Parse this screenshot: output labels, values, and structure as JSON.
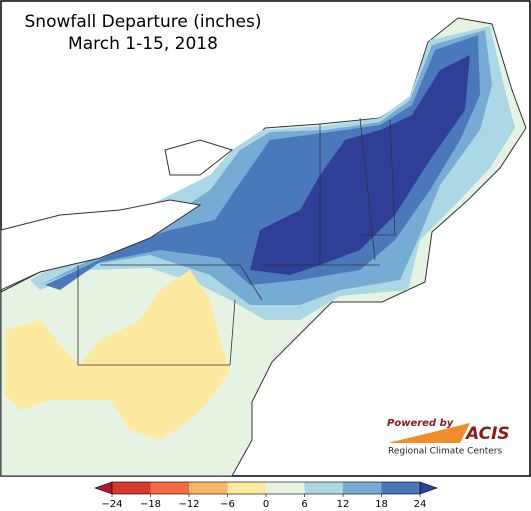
{
  "title": "Snowfall Departure (inches)",
  "subtitle": "March 1-15, 2018",
  "legend": {
    "ticks": [
      {
        "value": -24,
        "label": "−24"
      },
      {
        "value": -18,
        "label": "−18"
      },
      {
        "value": -12,
        "label": "−12"
      },
      {
        "value": -6,
        "label": "−6"
      },
      0,
      6,
      12,
      18,
      24
    ],
    "colors": [
      "#b2182b",
      "#d6372f",
      "#f26b45",
      "#fbb468",
      "#fde9a0",
      "#e6f3e2",
      "#acd8e6",
      "#76abd4",
      "#4a79bb",
      "#2f3f98"
    ]
  },
  "logo": {
    "powered": "Powered by",
    "name": "ACIS",
    "org": "Regional Climate Centers"
  }
}
